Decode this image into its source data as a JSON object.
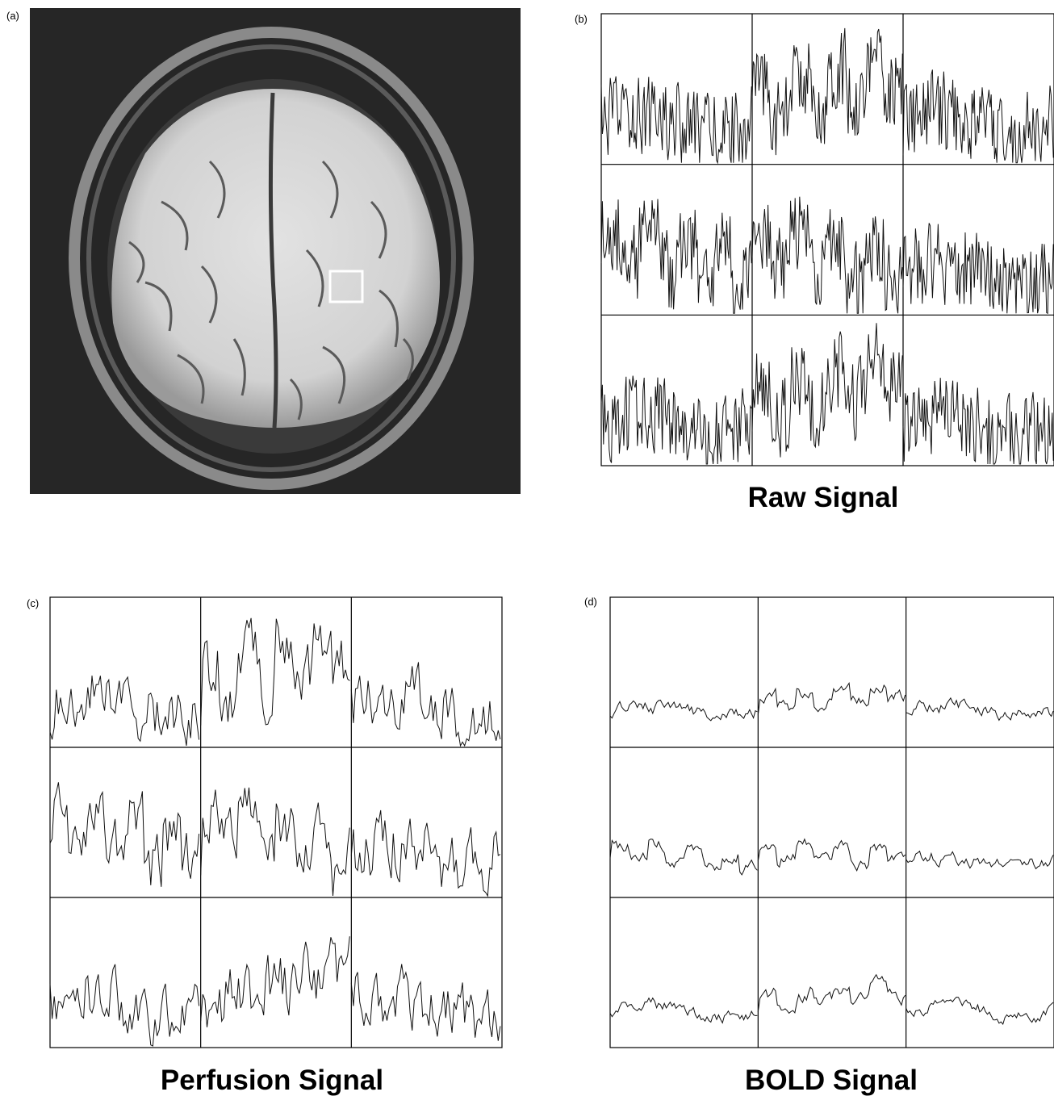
{
  "panels": [
    {
      "label": "(a)"
    },
    {
      "label": "(b)",
      "title": "Raw Signal"
    },
    {
      "label": "(c)",
      "title": "Perfusion Signal"
    },
    {
      "label": "(d)",
      "title": "BOLD Signal"
    }
  ]
}
